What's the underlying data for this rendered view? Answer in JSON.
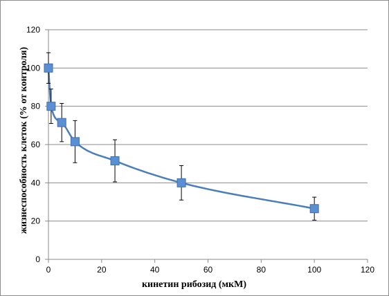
{
  "chart_data": {
    "type": "scatter",
    "xlabel": "кинетин рибозид (мкМ)",
    "ylabel": "жизнеспособность клеток (% от контроля)",
    "xlim": [
      0,
      120
    ],
    "ylim": [
      0,
      120
    ],
    "x_ticks": [
      0,
      20,
      40,
      60,
      80,
      100,
      120
    ],
    "y_ticks": [
      0,
      20,
      40,
      60,
      80,
      100,
      120
    ],
    "grid": "horizontal",
    "series": [
      {
        "color": "#4a7ebb",
        "marker": "square",
        "trendline": true,
        "points": [
          {
            "x": 0,
            "y": 100,
            "err": 8
          },
          {
            "x": 1,
            "y": 80,
            "err": 9
          },
          {
            "x": 5,
            "y": 71.5,
            "err": 10
          },
          {
            "x": 10,
            "y": 61.5,
            "err": 11
          },
          {
            "x": 25,
            "y": 51.5,
            "err": 11
          },
          {
            "x": 50,
            "y": 40,
            "err": 9
          },
          {
            "x": 100,
            "y": 26.5,
            "err": 6
          }
        ]
      }
    ]
  }
}
